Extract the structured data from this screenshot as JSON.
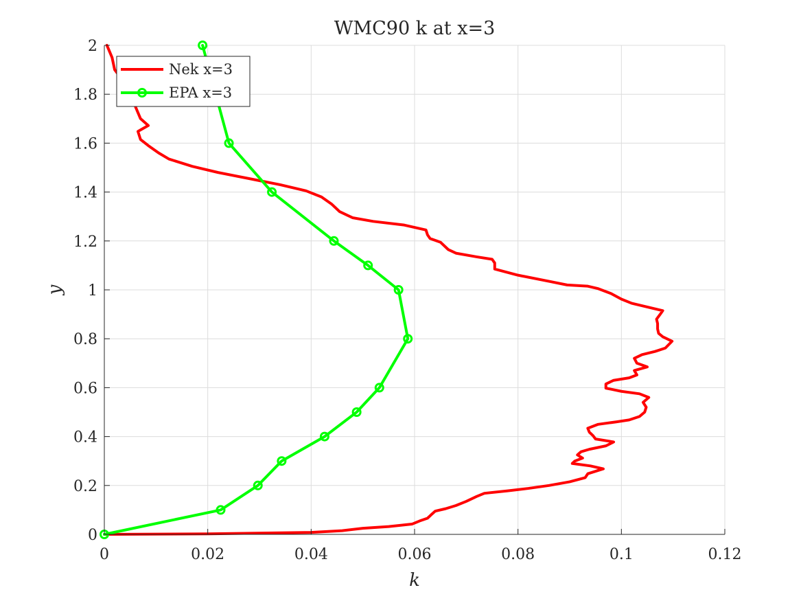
{
  "chart_data": {
    "type": "line",
    "title": "WMC90 k at x=3",
    "xlabel": "k",
    "ylabel": "y",
    "xlim": [
      0,
      0.12
    ],
    "ylim": [
      0,
      2
    ],
    "xticks": [
      "0",
      "0.02",
      "0.04",
      "0.06",
      "0.08",
      "0.1",
      "0.12"
    ],
    "yticks": [
      "0",
      "0.2",
      "0.4",
      "0.6",
      "0.8",
      "1",
      "1.2",
      "1.4",
      "1.6",
      "1.8",
      "2"
    ],
    "grid": true,
    "legend_position": "top-left",
    "series": [
      {
        "name": "Nek x=3",
        "color": "#ff0000",
        "marker": "none",
        "points": [
          [
            0,
            0
          ],
          [
            0.02,
            0.002
          ],
          [
            0.04,
            0.008
          ],
          [
            0.046,
            0.015
          ],
          [
            0.05,
            0.025
          ],
          [
            0.055,
            0.032
          ],
          [
            0.0595,
            0.042
          ],
          [
            0.061,
            0.055
          ],
          [
            0.0625,
            0.066
          ],
          [
            0.0632,
            0.08
          ],
          [
            0.064,
            0.095
          ],
          [
            0.066,
            0.105
          ],
          [
            0.068,
            0.118
          ],
          [
            0.07,
            0.135
          ],
          [
            0.072,
            0.155
          ],
          [
            0.0735,
            0.168
          ],
          [
            0.078,
            0.178
          ],
          [
            0.082,
            0.188
          ],
          [
            0.086,
            0.2
          ],
          [
            0.09,
            0.215
          ],
          [
            0.093,
            0.232
          ],
          [
            0.0935,
            0.248
          ],
          [
            0.0965,
            0.268
          ],
          [
            0.094,
            0.28
          ],
          [
            0.0905,
            0.29
          ],
          [
            0.091,
            0.3
          ],
          [
            0.0925,
            0.312
          ],
          [
            0.0915,
            0.325
          ],
          [
            0.0922,
            0.338
          ],
          [
            0.0938,
            0.348
          ],
          [
            0.097,
            0.362
          ],
          [
            0.0985,
            0.378
          ],
          [
            0.095,
            0.39
          ],
          [
            0.0945,
            0.404
          ],
          [
            0.0938,
            0.418
          ],
          [
            0.0935,
            0.434
          ],
          [
            0.0955,
            0.45
          ],
          [
            0.099,
            0.46
          ],
          [
            0.1015,
            0.468
          ],
          [
            0.1035,
            0.482
          ],
          [
            0.1045,
            0.5
          ],
          [
            0.1048,
            0.52
          ],
          [
            0.1042,
            0.54
          ],
          [
            0.1053,
            0.56
          ],
          [
            0.1035,
            0.575
          ],
          [
            0.1,
            0.585
          ],
          [
            0.097,
            0.598
          ],
          [
            0.097,
            0.615
          ],
          [
            0.0985,
            0.63
          ],
          [
            0.1015,
            0.64
          ],
          [
            0.103,
            0.652
          ],
          [
            0.1025,
            0.67
          ],
          [
            0.105,
            0.685
          ],
          [
            0.103,
            0.7
          ],
          [
            0.1025,
            0.72
          ],
          [
            0.104,
            0.735
          ],
          [
            0.1065,
            0.748
          ],
          [
            0.1085,
            0.762
          ],
          [
            0.1098,
            0.79
          ],
          [
            0.108,
            0.808
          ],
          [
            0.1072,
            0.822
          ],
          [
            0.107,
            0.84
          ],
          [
            0.107,
            0.862
          ],
          [
            0.1068,
            0.88
          ],
          [
            0.1075,
            0.9
          ],
          [
            0.108,
            0.915
          ],
          [
            0.105,
            0.93
          ],
          [
            0.102,
            0.945
          ],
          [
            0.1,
            0.962
          ],
          [
            0.098,
            0.985
          ],
          [
            0.0955,
            1.005
          ],
          [
            0.0935,
            1.015
          ],
          [
            0.0895,
            1.02
          ],
          [
            0.086,
            1.035
          ],
          [
            0.08,
            1.06
          ],
          [
            0.0755,
            1.085
          ],
          [
            0.0755,
            1.11
          ],
          [
            0.075,
            1.125
          ],
          [
            0.072,
            1.135
          ],
          [
            0.068,
            1.15
          ],
          [
            0.0665,
            1.165
          ],
          [
            0.065,
            1.195
          ],
          [
            0.063,
            1.21
          ],
          [
            0.0625,
            1.225
          ],
          [
            0.0622,
            1.245
          ],
          [
            0.058,
            1.265
          ],
          [
            0.052,
            1.28
          ],
          [
            0.048,
            1.295
          ],
          [
            0.0455,
            1.32
          ],
          [
            0.044,
            1.35
          ],
          [
            0.042,
            1.38
          ],
          [
            0.039,
            1.405
          ],
          [
            0.034,
            1.43
          ],
          [
            0.028,
            1.455
          ],
          [
            0.022,
            1.48
          ],
          [
            0.017,
            1.505
          ],
          [
            0.0125,
            1.535
          ],
          [
            0.0105,
            1.56
          ],
          [
            0.0085,
            1.59
          ],
          [
            0.007,
            1.615
          ],
          [
            0.0065,
            1.648
          ],
          [
            0.0075,
            1.66
          ],
          [
            0.0085,
            1.672
          ],
          [
            0.007,
            1.7
          ],
          [
            0.006,
            1.75
          ],
          [
            0.005,
            1.8
          ],
          [
            0.0038,
            1.85
          ],
          [
            0.002,
            1.9
          ],
          [
            0.0015,
            1.95
          ],
          [
            0.0008,
            1.985
          ],
          [
            0.0005,
            2.0
          ]
        ]
      },
      {
        "name": "EPA x=3",
        "color": "#00ff00",
        "marker": "circle",
        "points": [
          [
            0,
            0
          ],
          [
            0.0225,
            0.1
          ],
          [
            0.0297,
            0.2
          ],
          [
            0.0343,
            0.3
          ],
          [
            0.0426,
            0.4
          ],
          [
            0.0488,
            0.5
          ],
          [
            0.0532,
            0.6
          ],
          [
            0.0587,
            0.8
          ],
          [
            0.0569,
            1.0
          ],
          [
            0.051,
            1.1
          ],
          [
            0.0444,
            1.2
          ],
          [
            0.0324,
            1.4
          ],
          [
            0.0241,
            1.6
          ],
          [
            0.019,
            2.0
          ]
        ]
      }
    ]
  }
}
